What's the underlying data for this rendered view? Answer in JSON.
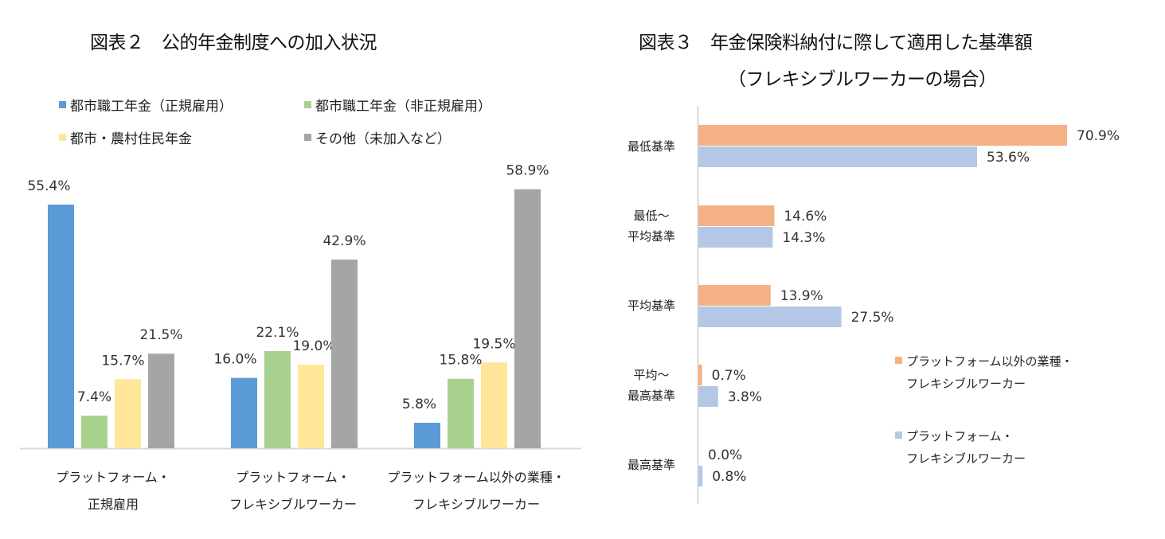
{
  "chart_data": [
    {
      "type": "bar",
      "title": "図表２　公的年金制度への加入状況",
      "xlabel": "",
      "ylabel": "",
      "ylim": [
        0,
        60
      ],
      "grid": false,
      "legend_position": "top",
      "categories": [
        [
          "プラットフォーム・",
          "正規雇用"
        ],
        [
          "プラットフォーム・",
          "フレキシブルワーカー"
        ],
        [
          "プラットフォーム以外の業種・",
          "フレキシブルワーカー"
        ]
      ],
      "series": [
        {
          "name": "都市職工年金（正規雇用）",
          "color": "#5b9bd5",
          "values": [
            55.4,
            16.0,
            5.8
          ],
          "labels": [
            "55.4%",
            "16.0%",
            "5.8%"
          ]
        },
        {
          "name": "都市職工年金（非正規雇用）",
          "color": "#a9d18e",
          "values": [
            7.4,
            22.1,
            15.8
          ],
          "labels": [
            "7.4%",
            "22.1%",
            "15.8%"
          ]
        },
        {
          "name": "都市・農村住民年金",
          "color": "#ffe699",
          "values": [
            15.7,
            19.0,
            19.5
          ],
          "labels": [
            "15.7%",
            "19.0%",
            "19.5%"
          ]
        },
        {
          "name": "その他（未加入など）",
          "color": "#a5a5a5",
          "values": [
            21.5,
            42.9,
            58.9
          ],
          "labels": [
            "21.5%",
            "42.9%",
            "58.9%"
          ]
        }
      ]
    },
    {
      "type": "bar",
      "orientation": "horizontal",
      "title": "図表３　年金保険料納付に際して適用した基準額",
      "subtitle": "（フレキシブルワーカーの場合）",
      "xlabel": "",
      "ylabel": "",
      "xlim": [
        0,
        75
      ],
      "grid": false,
      "legend_position": "right",
      "categories": [
        [
          "最低基準"
        ],
        [
          "最低～",
          "平均基準"
        ],
        [
          "平均基準"
        ],
        [
          "平均～",
          "最高基準"
        ],
        [
          "最高基準"
        ]
      ],
      "series": [
        {
          "name": [
            "プラットフォーム以外の業種・",
            "フレキシブルワーカー"
          ],
          "color": "#f4b183",
          "values": [
            70.9,
            14.6,
            13.9,
            0.7,
            0.0
          ],
          "labels": [
            "70.9%",
            "14.6%",
            "13.9%",
            "0.7%",
            "0.0%"
          ]
        },
        {
          "name": [
            "プラットフォーム・",
            "フレキシブルワーカー"
          ],
          "color": "#b4c7e7",
          "values": [
            53.6,
            14.3,
            27.5,
            3.8,
            0.8
          ],
          "labels": [
            "53.6%",
            "14.3%",
            "27.5%",
            "3.8%",
            "0.8%"
          ]
        }
      ]
    }
  ],
  "colors": {
    "axis": "#d9d9d9",
    "text": "#222222"
  }
}
